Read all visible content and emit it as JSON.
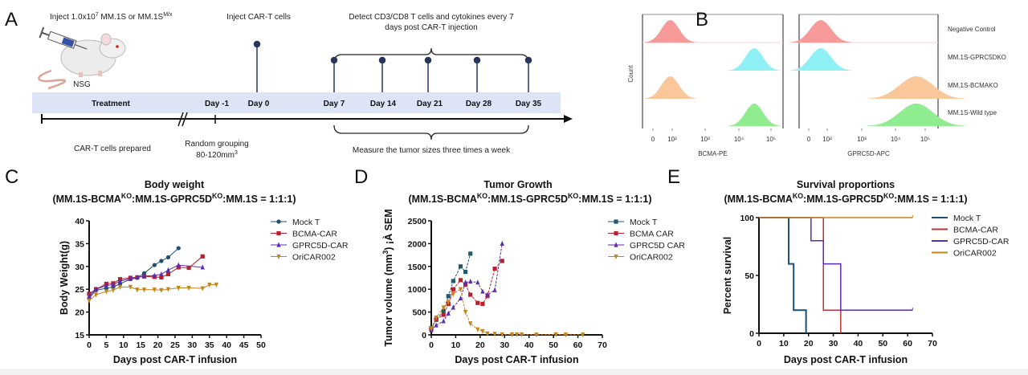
{
  "panel_labels": {
    "a": "A",
    "b": "B",
    "c": "C",
    "d": "D",
    "e": "E"
  },
  "timeline": {
    "inject_tumor": {
      "pre": "Inject 1.0x10",
      "sup1": "7",
      "mid": " MM.1S or MM.1S",
      "sup2": "M/x"
    },
    "mouse_label": "NSG",
    "inject_cart": "Inject CAR-T cells",
    "detect_line1": "Detect CD3/CD8 T cells and cytokines every 7",
    "detect_line2": "days post CAR-T injection",
    "treatment": "Treatment",
    "days": [
      "Day -1",
      "Day 0",
      "Day 7",
      "Day 14",
      "Day 21",
      "Day 28",
      "Day 35"
    ],
    "cart_prepared": "CAR-T cells prepared",
    "random_grouping": "Random grouping",
    "grouping_size": {
      "pre": "80-120mm",
      "sup": "3"
    },
    "measure": "Measure the tumor sizes three times a week",
    "colors": {
      "bar": "#dde4f5",
      "dot": "#27365a"
    }
  },
  "chart_data": [
    {
      "type": "histogram",
      "ylabel": "Count",
      "panels": [
        {
          "xlabel": "BCMA-PE",
          "ticks": [
            "0",
            "10²",
            "10³",
            "10⁴",
            "10⁵"
          ]
        },
        {
          "xlabel": "GPRC5D-APC",
          "ticks": [
            "0",
            "10²",
            "10³",
            "10⁴",
            "10⁵"
          ]
        }
      ],
      "samples": [
        {
          "name": "Negative Control",
          "color": "#f79a9a",
          "peaks": [
            90,
            65
          ]
        },
        {
          "name": "MM.1S-GPRC5DKO",
          "color": "#8ff0f5",
          "peaks": [
            3000,
            65
          ]
        },
        {
          "name": "MM.1S-BCMAKO",
          "color": "#fac79a",
          "peaks": [
            90,
            5000
          ]
        },
        {
          "name": "MM.1S-Wild type",
          "color": "#8fec8f",
          "peaks": [
            3000,
            5000
          ]
        }
      ]
    },
    {
      "type": "line",
      "title": "Body weight",
      "subtitle": [
        {
          "text": "(MM.1S-BCMA",
          "sup": false
        },
        {
          "text": "KO",
          "sup": true
        },
        {
          "text": ":MM.1S-GPRC5D",
          "sup": false
        },
        {
          "text": "KO",
          "sup": true
        },
        {
          "text": ":MM.1S = 1:1:1)",
          "sup": false
        }
      ],
      "xlabel": "Days post CAR-T infusion",
      "ylabel": "Body Weight(g)",
      "xlim": [
        0,
        50
      ],
      "ylim": [
        15,
        40
      ],
      "xticks": [
        0,
        5,
        10,
        15,
        20,
        25,
        30,
        35,
        40,
        45,
        50
      ],
      "yticks": [
        15,
        20,
        25,
        30,
        35,
        40
      ],
      "legend": "right",
      "series": [
        {
          "name": "Mock T",
          "color": "#1f5070",
          "marker": "circle",
          "x": [
            0,
            2,
            5,
            7,
            9,
            12,
            14,
            16,
            19,
            21,
            23,
            26
          ],
          "y": [
            23,
            24.8,
            25.2,
            25.5,
            26.2,
            27.2,
            27.5,
            28.5,
            30.3,
            31.2,
            32,
            34
          ]
        },
        {
          "name": "BCMA-CAR",
          "color": "#b8202e",
          "marker": "square",
          "x": [
            0,
            2,
            5,
            7,
            9,
            12,
            14,
            16,
            19,
            21,
            23,
            26,
            29,
            33
          ],
          "y": [
            24,
            25,
            26.2,
            26.3,
            27.2,
            27.5,
            27.6,
            27.8,
            27.7,
            27.6,
            28.3,
            29.8,
            29.7,
            32.2
          ]
        },
        {
          "name": "GPRC5D-CAR",
          "color": "#5a2db0",
          "marker": "triangle",
          "x": [
            0,
            2,
            5,
            7,
            9,
            12,
            14,
            16,
            19,
            21,
            23,
            26,
            33
          ],
          "y": [
            23.5,
            25,
            25.8,
            26,
            26.8,
            27.3,
            27.6,
            27.9,
            28,
            28.3,
            29.2,
            30.3,
            29.8
          ]
        },
        {
          "name": "OriCAR002",
          "color": "#c4841c",
          "marker": "tri-down",
          "x": [
            0,
            2,
            5,
            7,
            9,
            12,
            14,
            16,
            19,
            21,
            23,
            26,
            29,
            33,
            35,
            37
          ],
          "y": [
            22.5,
            23.8,
            24.5,
            24.8,
            25.5,
            25.5,
            24.9,
            24.9,
            24.9,
            24.8,
            25,
            25.3,
            25.3,
            25.2,
            26,
            26
          ]
        }
      ]
    },
    {
      "type": "line",
      "title": "Tumor Growth",
      "subtitle": [
        {
          "text": "(MM.1S-BCMA",
          "sup": false
        },
        {
          "text": "KO",
          "sup": true
        },
        {
          "text": ":MM.1S-GPRC5D",
          "sup": false
        },
        {
          "text": "KO",
          "sup": true
        },
        {
          "text": ":MM.1S = 1:1:1)",
          "sup": false
        }
      ],
      "xlabel": "Days post CAR-T infusion",
      "ylabel": [
        {
          "text": "Tumor volume (mm",
          "sup": false
        },
        {
          "text": "3",
          "sup": true
        },
        {
          "text": ") ¡À SEM",
          "sup": false
        }
      ],
      "xlim": [
        0,
        70
      ],
      "ylim": [
        0,
        2500
      ],
      "xticks": [
        0,
        10,
        20,
        30,
        40,
        50,
        60,
        70
      ],
      "yticks": [
        0,
        500,
        1000,
        1500,
        2000,
        2500
      ],
      "legend": "right",
      "series": [
        {
          "name": "Mock T",
          "color": "#1f5a6e",
          "marker": "square",
          "x": [
            0,
            2,
            5,
            7,
            9,
            12,
            14,
            16
          ],
          "y": [
            150,
            330,
            520,
            850,
            1180,
            1500,
            1380,
            1780
          ]
        },
        {
          "name": "BCMA CAR",
          "color": "#b8202e",
          "marker": "square",
          "x": [
            0,
            2,
            5,
            7,
            9,
            12,
            14,
            16,
            19,
            21,
            23,
            26,
            29
          ],
          "y": [
            130,
            340,
            440,
            680,
            1000,
            1200,
            1100,
            880,
            700,
            680,
            850,
            1450,
            1620
          ]
        },
        {
          "name": "GPRC5D CAR",
          "color": "#5a2db0",
          "marker": "triangle",
          "x": [
            0,
            2,
            5,
            7,
            9,
            12,
            14,
            16,
            19,
            21,
            23,
            26,
            29
          ],
          "y": [
            100,
            210,
            300,
            470,
            600,
            800,
            1150,
            1170,
            1150,
            950,
            880,
            980,
            2000
          ]
        },
        {
          "name": "OriCAR002",
          "color": "#c4841c",
          "marker": "tri-down",
          "x": [
            0,
            2,
            5,
            7,
            9,
            12,
            14,
            16,
            19,
            21,
            23,
            26,
            29,
            33,
            35,
            37,
            43,
            51,
            55,
            62
          ],
          "y": [
            140,
            380,
            600,
            720,
            900,
            1000,
            500,
            250,
            120,
            80,
            30,
            20,
            10,
            10,
            10,
            10,
            5,
            10,
            5,
            5
          ]
        }
      ]
    },
    {
      "type": "step",
      "title": "Survival proportions",
      "subtitle": [
        {
          "text": "(MM.1S-BCMA",
          "sup": false
        },
        {
          "text": "KO",
          "sup": true
        },
        {
          "text": ":MM.1S-GPRC5D",
          "sup": false
        },
        {
          "text": "KO",
          "sup": true
        },
        {
          "text": ":MM.1S = 1:1:1)",
          "sup": false
        }
      ],
      "xlabel": "Days post CAR-T infusion",
      "ylabel": "Percent survival",
      "xlim": [
        0,
        70
      ],
      "ylim": [
        0,
        100
      ],
      "xticks": [
        0,
        10,
        20,
        30,
        40,
        50,
        60,
        70
      ],
      "yticks": [
        0,
        50,
        100
      ],
      "legend": "right",
      "series": [
        {
          "name": "Mock T",
          "color": "#1f4f6e",
          "x": [
            0,
            12,
            14,
            19
          ],
          "y": [
            100,
            60,
            20,
            0
          ]
        },
        {
          "name": "BCMA-CAR",
          "color": "#c0303a",
          "x": [
            0,
            26,
            33
          ],
          "y": [
            100,
            20,
            0
          ]
        },
        {
          "name": "GPRC5D-CAR",
          "color": "#5a2db0",
          "x": [
            0,
            21,
            26,
            33,
            62
          ],
          "y": [
            100,
            80,
            60,
            20,
            20
          ]
        },
        {
          "name": "OriCAR002",
          "color": "#c4841c",
          "x": [
            0,
            62
          ],
          "y": [
            100,
            100
          ]
        }
      ]
    }
  ]
}
